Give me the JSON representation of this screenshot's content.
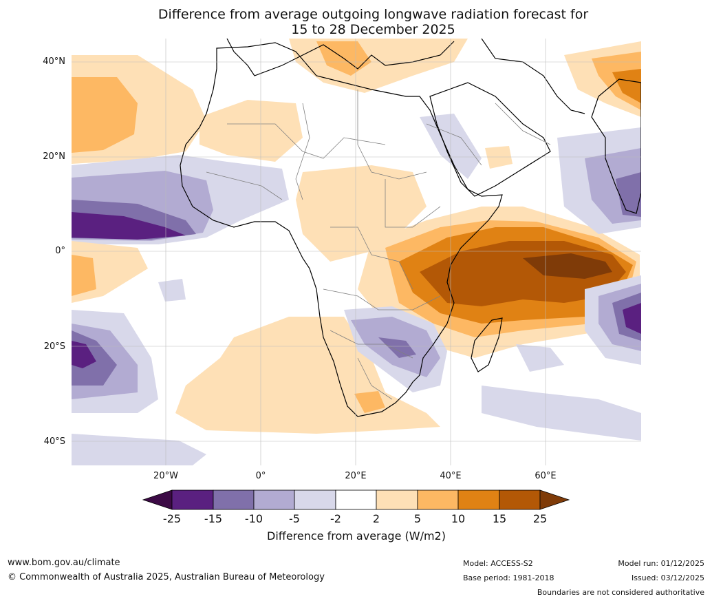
{
  "title": {
    "line1": "Difference from average outgoing longwave radiation forecast for",
    "line2": "15 to 28 December 2025"
  },
  "map": {
    "region": "Africa, Atlantic and western Indian Ocean",
    "lat_labels": [
      "40°N",
      "20°N",
      "0°",
      "20°S",
      "40°S"
    ],
    "lon_labels": [
      "20°W",
      "0°",
      "20°E",
      "40°E",
      "60°E"
    ],
    "colors": {
      "lt_neg25": "#3c0a45",
      "neg25_neg15": "#5a2080",
      "neg15_neg10": "#8070aa",
      "neg10_neg5": "#b2abd2",
      "neg5_neg2": "#d8d8ea",
      "neg2_2": "#ffffff",
      "p2_5": "#fee0b6",
      "p5_10": "#fdb863",
      "p10_15": "#e08214",
      "p15_25": "#b35806",
      "gt25": "#7f3b08",
      "land": "#ffffff",
      "coast": "#000000",
      "border": "#808080",
      "grid": "#bbbbbb"
    }
  },
  "colorbar": {
    "ticks": [
      "-25",
      "-15",
      "-10",
      "-5",
      "-2",
      "2",
      "5",
      "10",
      "15",
      "25"
    ],
    "title": "Difference from average (W/m2)"
  },
  "footer": {
    "website": "www.bom.gov.au/climate",
    "copyright": "© Commonwealth of Australia 2025, Australian Bureau of Meteorology",
    "model": "Model: ACCESS-S2",
    "base_period": "Base period: 1981-2018",
    "model_run": "Model run: 01/12/2025",
    "issued": "Issued: 03/12/2025",
    "disclaimer": "Boundaries are not considered authoritative"
  }
}
